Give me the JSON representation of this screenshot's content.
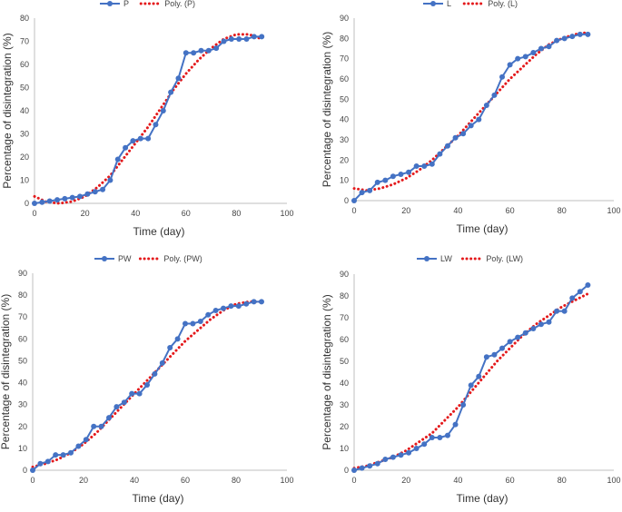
{
  "chart_data": [
    {
      "type": "line",
      "title": "",
      "xlabel": "Time (day)",
      "ylabel": "Percentage of disintegration (%)",
      "xlim": [
        0,
        100
      ],
      "ylim": [
        0,
        80
      ],
      "xticks": [
        0,
        20,
        40,
        60,
        80,
        100
      ],
      "yticks": [
        0,
        10,
        20,
        30,
        40,
        50,
        60,
        70,
        80
      ],
      "grid": false,
      "legend_position": "top",
      "series": [
        {
          "name": "P",
          "style": "line-markers",
          "color": "#4472C4",
          "x": [
            0,
            3,
            6,
            9,
            12,
            15,
            18,
            21,
            24,
            27,
            30,
            33,
            36,
            39,
            42,
            45,
            48,
            51,
            54,
            57,
            60,
            63,
            66,
            69,
            72,
            75,
            78,
            81,
            84,
            87,
            90
          ],
          "y": [
            0,
            0.5,
            1,
            1.5,
            2,
            2.5,
            3,
            4,
            5,
            6,
            10,
            19,
            24,
            27,
            28,
            28,
            34,
            40,
            48,
            54,
            65,
            65,
            66,
            66,
            67,
            70,
            71,
            71,
            71,
            72,
            72
          ]
        },
        {
          "name": "Poly. (P)",
          "style": "dotted",
          "color": "#E41A1C",
          "x": [
            0,
            5,
            10,
            15,
            20,
            25,
            30,
            35,
            40,
            45,
            50,
            55,
            60,
            65,
            70,
            75,
            80,
            85,
            90
          ],
          "y": [
            3,
            0.5,
            0,
            0.8,
            3,
            7,
            12,
            19,
            26,
            33,
            41,
            49,
            56,
            62,
            67,
            71,
            73,
            73,
            71
          ]
        }
      ]
    },
    {
      "type": "line",
      "title": "",
      "xlabel": "Time (day)",
      "ylabel": "Percentage of disintegration (%)",
      "xlim": [
        0,
        100
      ],
      "ylim": [
        0,
        90
      ],
      "xticks": [
        0,
        20,
        40,
        60,
        80,
        100
      ],
      "yticks": [
        0,
        10,
        20,
        30,
        40,
        50,
        60,
        70,
        80,
        90
      ],
      "grid": false,
      "legend_position": "top",
      "series": [
        {
          "name": "L",
          "style": "line-markers",
          "color": "#4472C4",
          "x": [
            0,
            3,
            6,
            9,
            12,
            15,
            18,
            21,
            24,
            27,
            30,
            33,
            36,
            39,
            42,
            45,
            48,
            51,
            54,
            57,
            60,
            63,
            66,
            69,
            72,
            75,
            78,
            81,
            84,
            87,
            90
          ],
          "y": [
            0,
            4,
            5,
            9,
            10,
            12,
            13,
            14,
            17,
            17,
            18,
            23,
            27,
            31,
            33,
            37,
            40,
            47,
            52,
            61,
            67,
            70,
            71,
            73,
            75,
            76,
            79,
            80,
            81,
            82,
            82
          ]
        },
        {
          "name": "Poly. (L)",
          "style": "dotted",
          "color": "#E41A1C",
          "x": [
            0,
            5,
            10,
            15,
            20,
            25,
            30,
            35,
            40,
            45,
            50,
            55,
            60,
            65,
            70,
            75,
            80,
            85,
            90
          ],
          "y": [
            6,
            5,
            6,
            8,
            11,
            15,
            20,
            26,
            32,
            39,
            46,
            53,
            60,
            66,
            72,
            77,
            80,
            82,
            83
          ]
        }
      ]
    },
    {
      "type": "line",
      "title": "",
      "xlabel": "Time (day)",
      "ylabel": "Percentage of disintegration (%)",
      "xlim": [
        0,
        100
      ],
      "ylim": [
        0,
        90
      ],
      "xticks": [
        0,
        20,
        40,
        60,
        80,
        100
      ],
      "yticks": [
        0,
        10,
        20,
        30,
        40,
        50,
        60,
        70,
        80,
        90
      ],
      "grid": false,
      "legend_position": "top",
      "series": [
        {
          "name": "PW",
          "style": "line-markers",
          "color": "#4472C4",
          "x": [
            0,
            3,
            6,
            9,
            12,
            15,
            18,
            21,
            24,
            27,
            30,
            33,
            36,
            39,
            42,
            45,
            48,
            51,
            54,
            57,
            60,
            63,
            66,
            69,
            72,
            75,
            78,
            81,
            84,
            87,
            90
          ],
          "y": [
            0,
            3,
            4,
            7,
            7,
            8,
            11,
            14,
            20,
            20,
            24,
            29,
            31,
            35,
            35,
            39,
            44,
            49,
            56,
            60,
            67,
            67,
            68,
            71,
            73,
            74,
            75,
            75,
            76,
            77,
            77
          ]
        },
        {
          "name": "Poly. (PW)",
          "style": "dotted",
          "color": "#E41A1C",
          "x": [
            0,
            5,
            10,
            15,
            20,
            25,
            30,
            35,
            40,
            45,
            50,
            55,
            60,
            65,
            70,
            75,
            80,
            85,
            90
          ],
          "y": [
            1.5,
            3,
            5,
            8,
            12,
            17,
            23,
            29,
            35,
            41,
            47,
            53,
            59,
            64,
            69,
            73,
            76,
            77,
            77
          ]
        }
      ]
    },
    {
      "type": "line",
      "title": "",
      "xlabel": "Time (day)",
      "ylabel": "Percentage of disintegration (%)",
      "xlim": [
        0,
        100
      ],
      "ylim": [
        0,
        90
      ],
      "xticks": [
        0,
        20,
        40,
        60,
        80,
        100
      ],
      "yticks": [
        0,
        10,
        20,
        30,
        40,
        50,
        60,
        70,
        80,
        90
      ],
      "grid": false,
      "legend_position": "top",
      "series": [
        {
          "name": "LW",
          "style": "line-markers",
          "color": "#4472C4",
          "x": [
            0,
            3,
            6,
            9,
            12,
            15,
            18,
            21,
            24,
            27,
            30,
            33,
            36,
            39,
            42,
            45,
            48,
            51,
            54,
            57,
            60,
            63,
            66,
            69,
            72,
            75,
            78,
            81,
            84,
            87,
            90
          ],
          "y": [
            0,
            1,
            2,
            3,
            5,
            6,
            7,
            8,
            10,
            12,
            15,
            15,
            16,
            21,
            30,
            39,
            43,
            52,
            53,
            56,
            59,
            61,
            63,
            65,
            67,
            68,
            73,
            73,
            79,
            82,
            85
          ]
        },
        {
          "name": "Poly. (LW)",
          "style": "dotted",
          "color": "#E41A1C",
          "x": [
            0,
            5,
            10,
            15,
            20,
            25,
            30,
            35,
            40,
            45,
            50,
            55,
            60,
            65,
            70,
            75,
            80,
            85,
            90
          ],
          "y": [
            1,
            2,
            4,
            6,
            9,
            13,
            17,
            23,
            29,
            36,
            43,
            50,
            56,
            62,
            67,
            71,
            75,
            78,
            81
          ]
        }
      ]
    }
  ]
}
